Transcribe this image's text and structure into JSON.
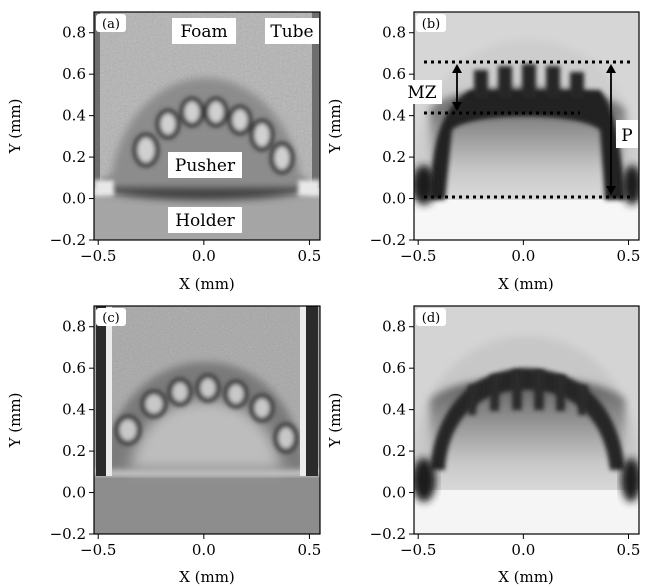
{
  "figure": {
    "panels": [
      {
        "id": "a",
        "label": "(a)",
        "kind": "radiograph",
        "xlabel": "X (mm)",
        "ylabel": "Y (mm)",
        "annotations": [
          "Foam",
          "Tube",
          "Pusher",
          "Holder"
        ]
      },
      {
        "id": "b",
        "label": "(b)",
        "kind": "simulation",
        "xlabel": "X (mm)",
        "ylabel": "Y (mm)",
        "annotations": [
          "MZ",
          "P"
        ]
      },
      {
        "id": "c",
        "label": "(c)",
        "kind": "radiograph",
        "xlabel": "X (mm)",
        "ylabel": "Y (mm)",
        "annotations": []
      },
      {
        "id": "d",
        "label": "(d)",
        "kind": "simulation",
        "xlabel": "X (mm)",
        "ylabel": "Y (mm)",
        "annotations": []
      }
    ]
  },
  "chart_data": [
    {
      "type": "heatmap",
      "panel": "(a)",
      "xlabel": "X (mm)",
      "ylabel": "Y (mm)",
      "xlim": [
        -0.52,
        0.55
      ],
      "ylim": [
        -0.2,
        0.9
      ],
      "xticks": [
        -0.5,
        0.0,
        0.5
      ],
      "xticklabels": [
        "−0.5",
        "0.0",
        "0.5"
      ],
      "yticks": [
        -0.2,
        0.0,
        0.2,
        0.4,
        0.6,
        0.8
      ],
      "yticklabels": [
        "−0.2",
        "0.0",
        "0.2",
        "0.4",
        "0.6",
        "0.8"
      ],
      "colormap": "grayscale",
      "annotations": [
        {
          "text": "Foam",
          "x": -0.01,
          "y": 0.8
        },
        {
          "text": "Tube",
          "x": 0.43,
          "y": 0.8
        },
        {
          "text": "Pusher",
          "x": 0.0,
          "y": 0.15
        },
        {
          "text": "Holder",
          "x": 0.0,
          "y": -0.11
        }
      ]
    },
    {
      "type": "heatmap",
      "panel": "(b)",
      "xlabel": "X (mm)",
      "ylabel": "Y (mm)",
      "xlim": [
        -0.52,
        0.55
      ],
      "ylim": [
        -0.2,
        0.9
      ],
      "xticks": [
        -0.5,
        0.0,
        0.5
      ],
      "xticklabels": [
        "−0.5",
        "0.0",
        "0.5"
      ],
      "yticks": [
        -0.2,
        0.0,
        0.2,
        0.4,
        0.6,
        0.8
      ],
      "yticklabels": [
        "−0.2",
        "0.0",
        "0.2",
        "0.4",
        "0.6",
        "0.8"
      ],
      "colormap": "grayscale",
      "reference_lines": [
        {
          "y": 0.65,
          "x_range": [
            -0.5,
            0.5
          ],
          "style": "dotted"
        },
        {
          "y": 0.4,
          "x_range": [
            -0.5,
            0.22
          ],
          "style": "dotted"
        },
        {
          "y": 0.0,
          "x_range": [
            -0.5,
            0.5
          ],
          "style": "dotted"
        }
      ],
      "arrows": [
        {
          "label": "MZ",
          "x": -0.36,
          "y_from": 0.4,
          "y_to": 0.65
        },
        {
          "label": "P",
          "x": 0.39,
          "y_from": 0.0,
          "y_to": 0.65
        }
      ]
    },
    {
      "type": "heatmap",
      "panel": "(c)",
      "xlabel": "X (mm)",
      "ylabel": "Y (mm)",
      "xlim": [
        -0.52,
        0.55
      ],
      "ylim": [
        -0.2,
        0.9
      ],
      "xticks": [
        -0.5,
        0.0,
        0.5
      ],
      "xticklabels": [
        "−0.5",
        "0.0",
        "0.5"
      ],
      "yticks": [
        -0.2,
        0.0,
        0.2,
        0.4,
        0.6,
        0.8
      ],
      "yticklabels": [
        "−0.2",
        "0.0",
        "0.2",
        "0.4",
        "0.6",
        "0.8"
      ],
      "colormap": "grayscale"
    },
    {
      "type": "heatmap",
      "panel": "(d)",
      "xlabel": "X (mm)",
      "ylabel": "Y (mm)",
      "xlim": [
        -0.52,
        0.55
      ],
      "ylim": [
        -0.2,
        0.9
      ],
      "xticks": [
        -0.5,
        0.0,
        0.5
      ],
      "xticklabels": [
        "−0.5",
        "0.0",
        "0.5"
      ],
      "yticks": [
        -0.2,
        0.0,
        0.2,
        0.4,
        0.6,
        0.8
      ],
      "yticklabels": [
        "−0.2",
        "0.0",
        "0.2",
        "0.4",
        "0.6",
        "0.8"
      ],
      "colormap": "grayscale"
    }
  ]
}
